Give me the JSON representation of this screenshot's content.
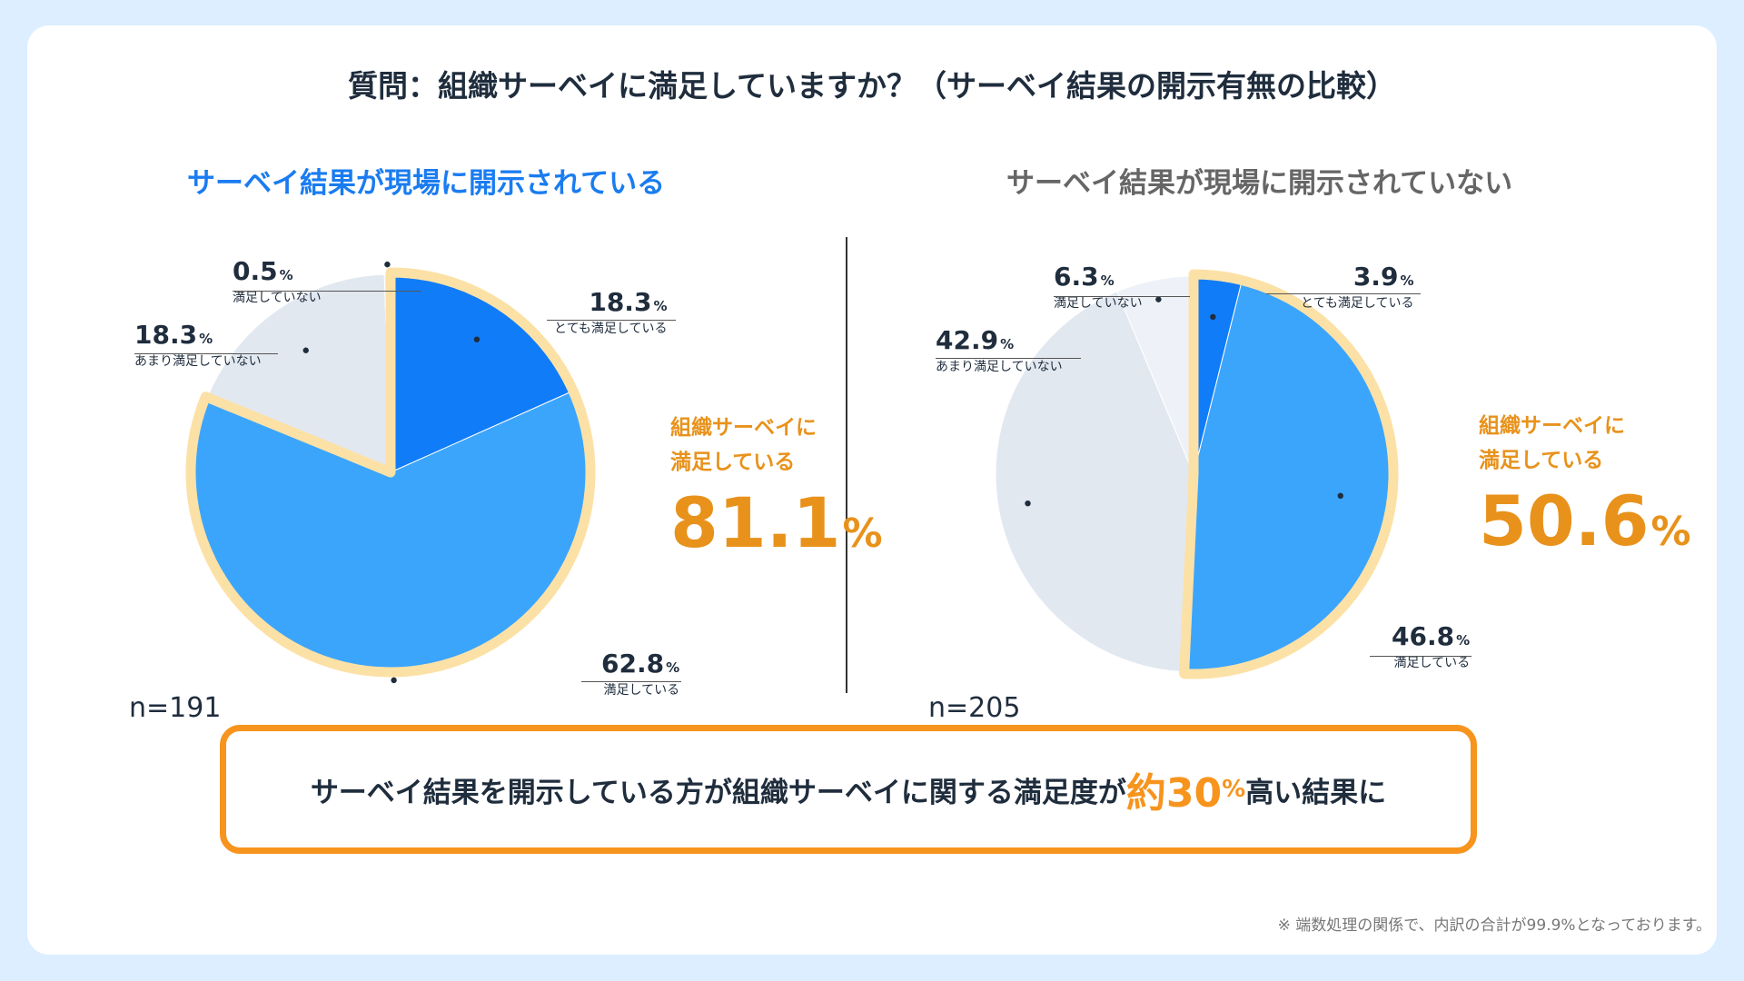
{
  "title": "質問：組織サーベイに満足していますか？（サーベイ結果の開示有無の比較）",
  "chart_data": [
    {
      "type": "pie",
      "title": "サーベイ結果が現場に開示されている",
      "n": "n=191",
      "slices": [
        {
          "label": "とても満足している",
          "value": 18.3,
          "display": "18.3",
          "color": "#117CF7"
        },
        {
          "label": "満足している",
          "value": 62.8,
          "display": "62.8",
          "color": "#3BA5FC"
        },
        {
          "label": "あまり満足していない",
          "value": 18.3,
          "display": "18.3",
          "color": "#E2E8F0"
        },
        {
          "label": "満足していない",
          "value": 0.5,
          "display": "0.5",
          "color": "#EEF2F8"
        }
      ],
      "satisfied_label_line1": "組織サーベイに",
      "satisfied_label_line2": "満足している",
      "satisfied_total": "81.1"
    },
    {
      "type": "pie",
      "title": "サーベイ結果が現場に開示されていない",
      "n": "n=205",
      "slices": [
        {
          "label": "とても満足している",
          "value": 3.9,
          "display": "3.9",
          "color": "#117CF7"
        },
        {
          "label": "満足している",
          "value": 46.8,
          "display": "46.8",
          "color": "#3BA5FC"
        },
        {
          "label": "あまり満足していない",
          "value": 42.9,
          "display": "42.9",
          "color": "#E2E8F0"
        },
        {
          "label": "満足していない",
          "value": 6.3,
          "display": "6.3",
          "color": "#EEF2F8"
        }
      ],
      "satisfied_label_line1": "組織サーベイに",
      "satisfied_label_line2": "満足している",
      "satisfied_total": "50.6"
    }
  ],
  "percent_unit": "%",
  "conclusion": {
    "before": "サーベイ結果を開示している方が組織サーベイに関する満足度が",
    "highlight": "約30",
    "pct": "%",
    "after": "高い結果に"
  },
  "footnote": "※ 端数処理の関係で、内訳の合計が99.9%となっております。",
  "colors": {
    "accent_orange": "#F7941D",
    "highlight_yellow": "#FCE1A6",
    "dark_blue": "#117CF7",
    "light_blue": "#3BA5FC"
  }
}
